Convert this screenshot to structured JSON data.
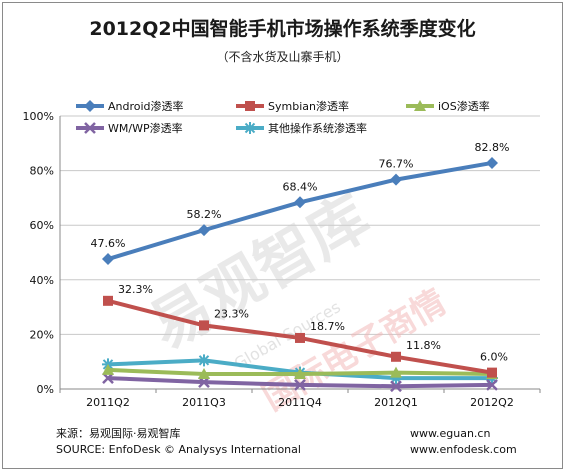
{
  "title": "2012Q2中国智能手机市场操作系统季度变化",
  "subtitle": "（不含水货及山寨手机）",
  "watermark": {
    "main": "易观智库",
    "sub": "国际电子商情",
    "sub_en": "Global Sources"
  },
  "footer": {
    "source_cn": "来源：易观国际·易观智库",
    "source_en": "SOURCE: EnfoDesk © Analysys International",
    "url1": "www.eguan.cn",
    "url2": "www.enfodesk.com"
  },
  "chart_data": {
    "type": "line",
    "categories": [
      "2011Q2",
      "2011Q3",
      "2011Q4",
      "2012Q1",
      "2012Q2"
    ],
    "ylim": [
      0,
      100
    ],
    "yticks": [
      "0%",
      "20%",
      "40%",
      "60%",
      "80%",
      "100%"
    ],
    "grid": true,
    "legend_placement": "top",
    "series": [
      {
        "name": "Android渗透率",
        "values": [
          47.6,
          58.2,
          68.4,
          76.7,
          82.8
        ],
        "color": "#4a7ebb",
        "marker": "diamond",
        "labels": [
          "47.6%",
          "58.2%",
          "68.4%",
          "76.7%",
          "82.8%"
        ]
      },
      {
        "name": "Symbian渗透率",
        "values": [
          32.3,
          23.3,
          18.7,
          11.8,
          6.0
        ],
        "color": "#c0504d",
        "marker": "square",
        "labels": [
          "32.3%",
          "23.3%",
          "18.7%",
          "11.8%",
          "6.0%"
        ]
      },
      {
        "name": "iOS渗透率",
        "values": [
          7.0,
          5.5,
          5.5,
          6.0,
          5.5
        ],
        "color": "#9bbb59",
        "marker": "triangle"
      },
      {
        "name": "WM/WP渗透率",
        "values": [
          4.0,
          2.5,
          1.5,
          1.0,
          1.5
        ],
        "color": "#8064a2",
        "marker": "x"
      },
      {
        "name": "其他操作系统渗透率",
        "values": [
          9.0,
          10.5,
          6.0,
          4.0,
          4.0
        ],
        "color": "#4bacc6",
        "marker": "star"
      }
    ]
  }
}
